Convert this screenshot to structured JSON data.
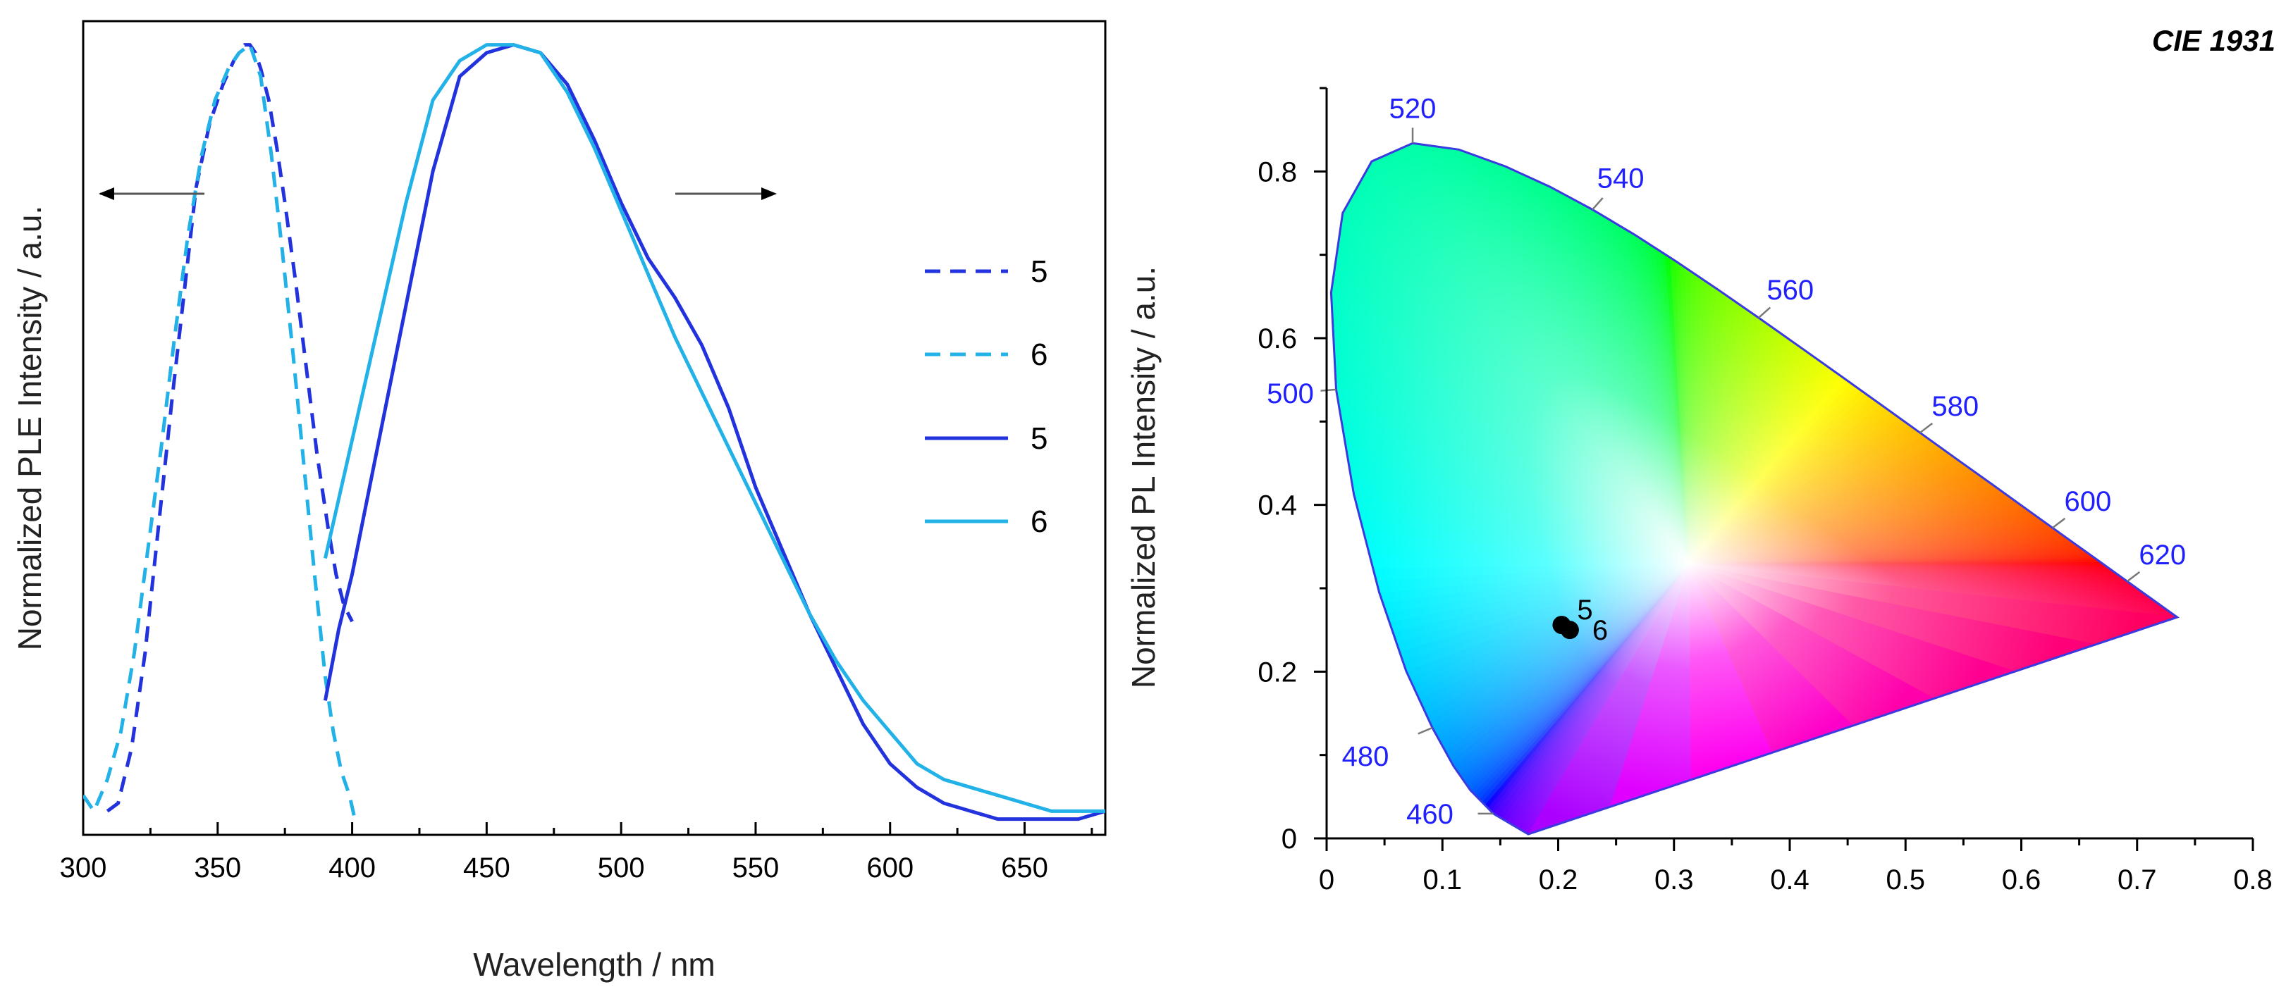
{
  "chart_data": [
    {
      "type": "line",
      "title": "",
      "xlabel": "Wavelength / nm",
      "ylabel": "Normalized PLE Intensity / a.u.",
      "xlim": [
        300,
        680
      ],
      "ylim": [
        0,
        1.03
      ],
      "x_ticks": [
        300,
        350,
        400,
        450,
        500,
        550,
        600,
        650
      ],
      "y_ticks_visible": false,
      "grid": false,
      "legend_position": "right",
      "annotations": [
        {
          "kind": "arrow",
          "direction": "left",
          "meaning": "PLE axis (left)"
        },
        {
          "kind": "arrow",
          "direction": "right",
          "meaning": "PL axis (right)"
        }
      ],
      "series": [
        {
          "name": "5",
          "role": "PLE",
          "style": "dashed",
          "color": "#2233dd",
          "x": [
            309,
            313,
            318,
            323,
            328,
            333,
            338,
            342,
            347,
            352,
            356,
            360,
            362,
            364,
            366,
            369,
            372,
            375,
            379,
            383,
            387,
            391,
            394,
            397,
            400
          ],
          "y": [
            0.03,
            0.04,
            0.11,
            0.23,
            0.39,
            0.55,
            0.7,
            0.82,
            0.9,
            0.95,
            0.98,
            1.0,
            1.0,
            0.99,
            0.97,
            0.93,
            0.87,
            0.8,
            0.7,
            0.59,
            0.48,
            0.39,
            0.33,
            0.29,
            0.27
          ]
        },
        {
          "name": "6",
          "role": "PLE",
          "style": "dashed",
          "color": "#22b2e8",
          "x": [
            300,
            304,
            309,
            314,
            319,
            324,
            329,
            334,
            339,
            344,
            349,
            354,
            358,
            362,
            366,
            370,
            374,
            378,
            382,
            386,
            390,
            393,
            396,
            399,
            401
          ],
          "y": [
            0.05,
            0.03,
            0.07,
            0.13,
            0.23,
            0.36,
            0.49,
            0.63,
            0.76,
            0.86,
            0.93,
            0.97,
            0.99,
            1.0,
            0.96,
            0.86,
            0.74,
            0.61,
            0.47,
            0.33,
            0.2,
            0.13,
            0.08,
            0.05,
            0.02
          ]
        },
        {
          "name": "5",
          "role": "PL",
          "style": "solid",
          "color": "#2233dd",
          "x": [
            390,
            395,
            400,
            410,
            420,
            430,
            440,
            450,
            460,
            470,
            480,
            490,
            500,
            510,
            520,
            530,
            540,
            550,
            560,
            570,
            580,
            590,
            600,
            610,
            620,
            630,
            640,
            650,
            660,
            670,
            680
          ],
          "y": [
            0.17,
            0.26,
            0.33,
            0.5,
            0.67,
            0.84,
            0.96,
            0.99,
            1.0,
            0.99,
            0.95,
            0.88,
            0.8,
            0.73,
            0.68,
            0.62,
            0.54,
            0.44,
            0.36,
            0.28,
            0.21,
            0.14,
            0.09,
            0.06,
            0.04,
            0.03,
            0.02,
            0.02,
            0.02,
            0.02,
            0.03
          ]
        },
        {
          "name": "6",
          "role": "PL",
          "style": "solid",
          "color": "#22b2e8",
          "x": [
            390,
            400,
            410,
            420,
            430,
            440,
            450,
            460,
            470,
            480,
            490,
            500,
            510,
            520,
            530,
            540,
            550,
            560,
            570,
            580,
            590,
            600,
            610,
            620,
            630,
            640,
            650,
            660,
            670,
            680
          ],
          "y": [
            0.35,
            0.5,
            0.65,
            0.8,
            0.93,
            0.98,
            1.0,
            1.0,
            0.99,
            0.94,
            0.87,
            0.79,
            0.71,
            0.63,
            0.56,
            0.49,
            0.42,
            0.35,
            0.28,
            0.22,
            0.17,
            0.13,
            0.09,
            0.07,
            0.06,
            0.05,
            0.04,
            0.03,
            0.03,
            0.03
          ]
        }
      ]
    },
    {
      "type": "scatter",
      "title": "CIE 1931",
      "xlabel": "",
      "ylabel": "Normalized PL Intensity / a.u.",
      "xlim": [
        0,
        0.8
      ],
      "ylim": [
        0,
        0.9
      ],
      "x_ticks": [
        0,
        0.1,
        0.2,
        0.3,
        0.4,
        0.5,
        0.6,
        0.7,
        0.8
      ],
      "y_ticks": [
        0,
        0.2,
        0.4,
        0.6,
        0.8
      ],
      "grid": false,
      "spectral_locus": {
        "x": [
          0.1741,
          0.144,
          0.1241,
          0.1096,
          0.0913,
          0.0687,
          0.0454,
          0.0235,
          0.0082,
          0.0039,
          0.0139,
          0.0389,
          0.0743,
          0.1142,
          0.1547,
          0.1929,
          0.2296,
          0.2658,
          0.3016,
          0.3373,
          0.3731,
          0.4087,
          0.4441,
          0.4788,
          0.5125,
          0.5448,
          0.5752,
          0.6029,
          0.627,
          0.6482,
          0.6658,
          0.6915,
          0.7347
        ],
        "y": [
          0.005,
          0.0297,
          0.0578,
          0.0868,
          0.1327,
          0.2007,
          0.295,
          0.4127,
          0.5384,
          0.6548,
          0.7502,
          0.812,
          0.8338,
          0.8262,
          0.8059,
          0.7816,
          0.7543,
          0.7243,
          0.6923,
          0.6589,
          0.6245,
          0.5896,
          0.5547,
          0.5202,
          0.4866,
          0.4544,
          0.4242,
          0.3965,
          0.3725,
          0.3514,
          0.334,
          0.3083,
          0.2653
        ]
      },
      "wavelength_labels": [
        {
          "nm": "460",
          "x": 0.144,
          "y": 0.0297
        },
        {
          "nm": "480",
          "x": 0.0913,
          "y": 0.1327
        },
        {
          "nm": "500",
          "x": 0.0082,
          "y": 0.5384
        },
        {
          "nm": "520",
          "x": 0.0743,
          "y": 0.8338
        },
        {
          "nm": "540",
          "x": 0.2296,
          "y": 0.7543
        },
        {
          "nm": "560",
          "x": 0.3731,
          "y": 0.6245
        },
        {
          "nm": "580",
          "x": 0.5125,
          "y": 0.4866
        },
        {
          "nm": "600",
          "x": 0.627,
          "y": 0.3725
        },
        {
          "nm": "620",
          "x": 0.6915,
          "y": 0.3083
        }
      ],
      "points": [
        {
          "name": "5",
          "x": 0.203,
          "y": 0.256
        },
        {
          "name": "6",
          "x": 0.21,
          "y": 0.25
        }
      ]
    }
  ]
}
